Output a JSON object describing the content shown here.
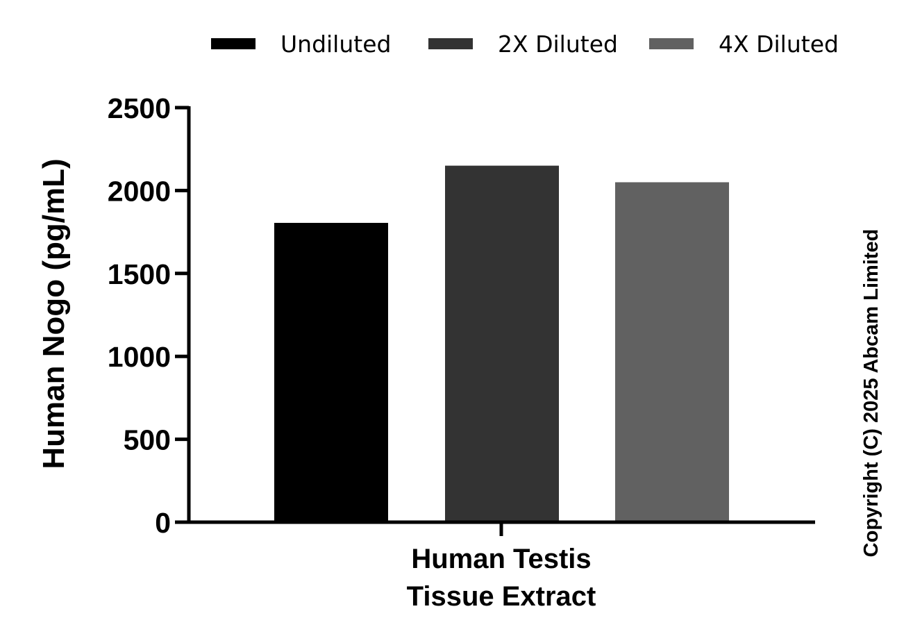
{
  "chart_data": {
    "type": "bar",
    "title": "",
    "xlabel": "",
    "ylabel": "Human Nogo (pg/mL)",
    "categories": [
      "Human Testis\nTissue Extract"
    ],
    "category_lines": [
      "Human Testis",
      "Tissue Extract"
    ],
    "series": [
      {
        "name": "Undiluted",
        "values": [
          1805
        ],
        "color": "#000000"
      },
      {
        "name": "2X Diluted",
        "values": [
          2150
        ],
        "color": "#333333"
      },
      {
        "name": "4X Diluted",
        "values": [
          2050
        ],
        "color": "#616161"
      }
    ],
    "ylim": [
      0,
      2500
    ],
    "yticks": [
      0,
      500,
      1000,
      1500,
      2000,
      2500
    ],
    "legend_position": "top",
    "grid": false
  },
  "copyright": "Copyright (C) 2025 Abcam Limited"
}
